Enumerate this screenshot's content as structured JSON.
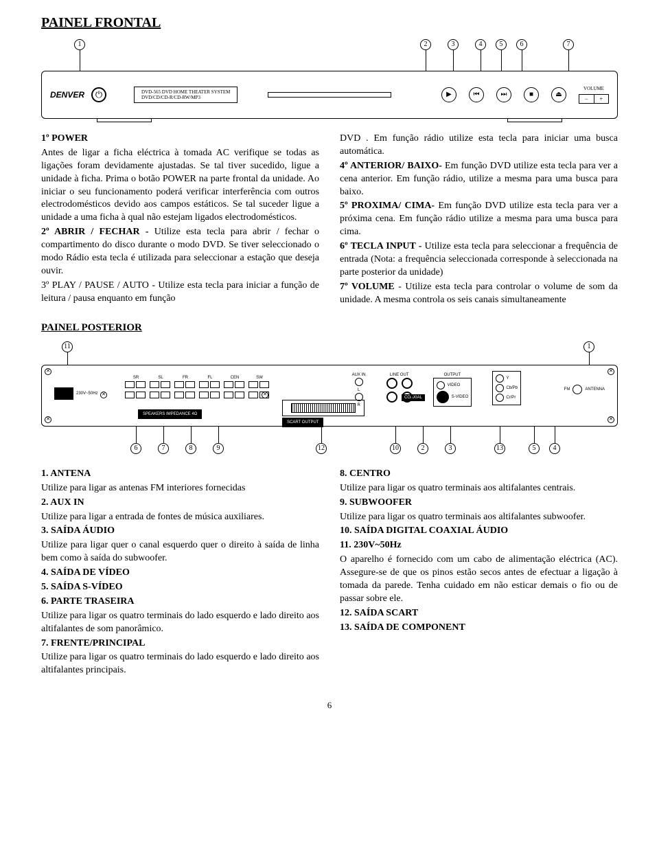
{
  "title_front": "PAINEL FRONTAL",
  "title_rear": "PAINEL POSTERIOR",
  "page_number": "6",
  "front_device": {
    "brand": "DENVER",
    "model_line1": "DVD-565 DVD HOME THEATER SYSTEM",
    "model_line2": "DVD/CD/CD-R/CD-RW/MP3",
    "volume_label": "VOLUME",
    "vol_minus": "−",
    "vol_plus": "+",
    "btn_play": "▶",
    "btn_prev": "⏮",
    "btn_next": "⏭",
    "btn_stop": "■",
    "btn_open": "⏏"
  },
  "front_callouts": [
    "1",
    "2",
    "3",
    "4",
    "5",
    "6",
    "7"
  ],
  "rear_callouts_top": [
    "11",
    "1"
  ],
  "rear_callouts_bottom": [
    "6",
    "7",
    "8",
    "9",
    "12",
    "10",
    "2",
    "3",
    "13",
    "5",
    "4"
  ],
  "rear_labels": {
    "ac": "230V~50Hz",
    "imp": "SPEAKERS IMPEDANCE 4Ω",
    "scart": "SCART OUTPUT",
    "coax": "COAXIAL",
    "terms": [
      "SR",
      "SL",
      "FR",
      "FL",
      "CEN",
      "SW"
    ],
    "auxin": "AUX IN",
    "lineout": "LINE OUT",
    "output": "OUTPUT",
    "L": "L",
    "R": "R",
    "video": "VIDEO",
    "svideo": "S-VIDEO",
    "fm": "FM",
    "antenna": "ANTENNA",
    "comp_y": "Y",
    "comp_cb": "Cb/Pb",
    "comp_cr": "Cr/Pr"
  },
  "front_col1": [
    {
      "b": "1º POWER",
      "t": ""
    },
    {
      "b": "",
      "t": "Antes de ligar a ficha eléctrica à tomada AC verifique se todas as ligações foram devidamente ajustadas. Se tal tiver sucedido, ligue a unidade à ficha. Prima o botão POWER na parte frontal da unidade. Ao iniciar o seu funcionamento poderá verificar interferência com outros electrodomésticos devido aos campos estáticos. Se tal suceder ligue a unidade a uma ficha à qual não estejam ligados electrodomésticos."
    },
    {
      "b": "2º ABRIR / FECHAR - ",
      "t": "Utilize esta tecla para abrir / fechar o compartimento do disco durante o modo DVD. Se tiver seleccionado o modo Rádio esta tecla é utilizada para seleccionar a estação que deseja ouvir."
    },
    {
      "b": "",
      "t": "3º PLAY / PAUSE / AUTO - Utilize esta tecla para iniciar a função de leitura / pausa enquanto em função",
      "prefix_bold": "3º PLAY / PAUSE / AUTO - "
    }
  ],
  "front_col2": [
    {
      "b": "",
      "t": "DVD . Em função rádio utilize esta tecla para iniciar uma busca automática."
    },
    {
      "b": "4º ANTERIOR/ BAIXO- ",
      "t": "Em função DVD utilize esta tecla para ver a cena anterior. Em função rádio, utilize a mesma para uma busca para baixo."
    },
    {
      "b": "5º PROXIMA/ CIMA- ",
      "t": "Em função DVD utilize esta tecla para ver a próxima cena. Em função rádio utilize a mesma para uma busca para cima."
    },
    {
      "b": "6º TECLA INPUT - ",
      "t": "Utilize esta tecla para seleccionar a frequência de entrada (Nota: a frequência seleccionada corresponde à seleccionada na parte posterior da unidade)"
    },
    {
      "b": "7º VOLUME ",
      "t": "- Utilize esta tecla para controlar o volume de som da unidade. A mesma controla os seis canais simultaneamente"
    }
  ],
  "rear_col1": [
    {
      "b": "1. ANTENA",
      "t": ""
    },
    {
      "b": "",
      "t": "Utilize para ligar as antenas FM interiores fornecidas"
    },
    {
      "b": "2. AUX IN",
      "t": ""
    },
    {
      "b": "",
      "t": "Utilize para ligar a entrada de fontes de música auxiliares."
    },
    {
      "b": "3. SAÍDA ÁUDIO",
      "t": ""
    },
    {
      "b": "",
      "t": "Utilize para ligar quer o canal esquerdo quer o direito à saída de linha bem como à saída do subwoofer."
    },
    {
      "b": "4. SAÍDA DE VÍDEO",
      "t": ""
    },
    {
      "b": "5. SAÍDA S-VÍDEO",
      "t": ""
    },
    {
      "b": "6. PARTE TRASEIRA",
      "t": ""
    },
    {
      "b": "",
      "t": "Utilize para ligar os quatro terminais do lado esquerdo e lado direito aos altifalantes de som panorâmico."
    },
    {
      "b": "7. FRENTE/PRINCIPAL",
      "t": ""
    },
    {
      "b": "",
      "t": "Utilize para ligar os quatro terminais do lado esquerdo e lado direito aos altifalantes principais."
    }
  ],
  "rear_col2": [
    {
      "b": "8. CENTRO",
      "t": ""
    },
    {
      "b": "",
      "t": "Utilize para ligar os quatro terminais aos altifalantes centrais."
    },
    {
      "b": "9. SUBWOOFER",
      "t": ""
    },
    {
      "b": "",
      "t": "Utilize para ligar os quatro terminais aos altifalantes subwoofer."
    },
    {
      "b": "10. SAÍDA DIGITAL COAXIAL ÁUDIO",
      "t": ""
    },
    {
      "b": "11.  230V~50Hz",
      "t": ""
    },
    {
      "b": "",
      "t": "O aparelho é fornecido com um cabo de alimentação eléctrica (AC).  Assegure-se de que os pinos estão secos antes de efectuar a ligação à tomada da parede. Tenha cuidado em não esticar demais o fio ou de passar sobre ele."
    },
    {
      "b": "12. SAÍDA SCART",
      "t": ""
    },
    {
      "b": "13.  SAÍDA DE COMPONENT",
      "t": ""
    }
  ]
}
